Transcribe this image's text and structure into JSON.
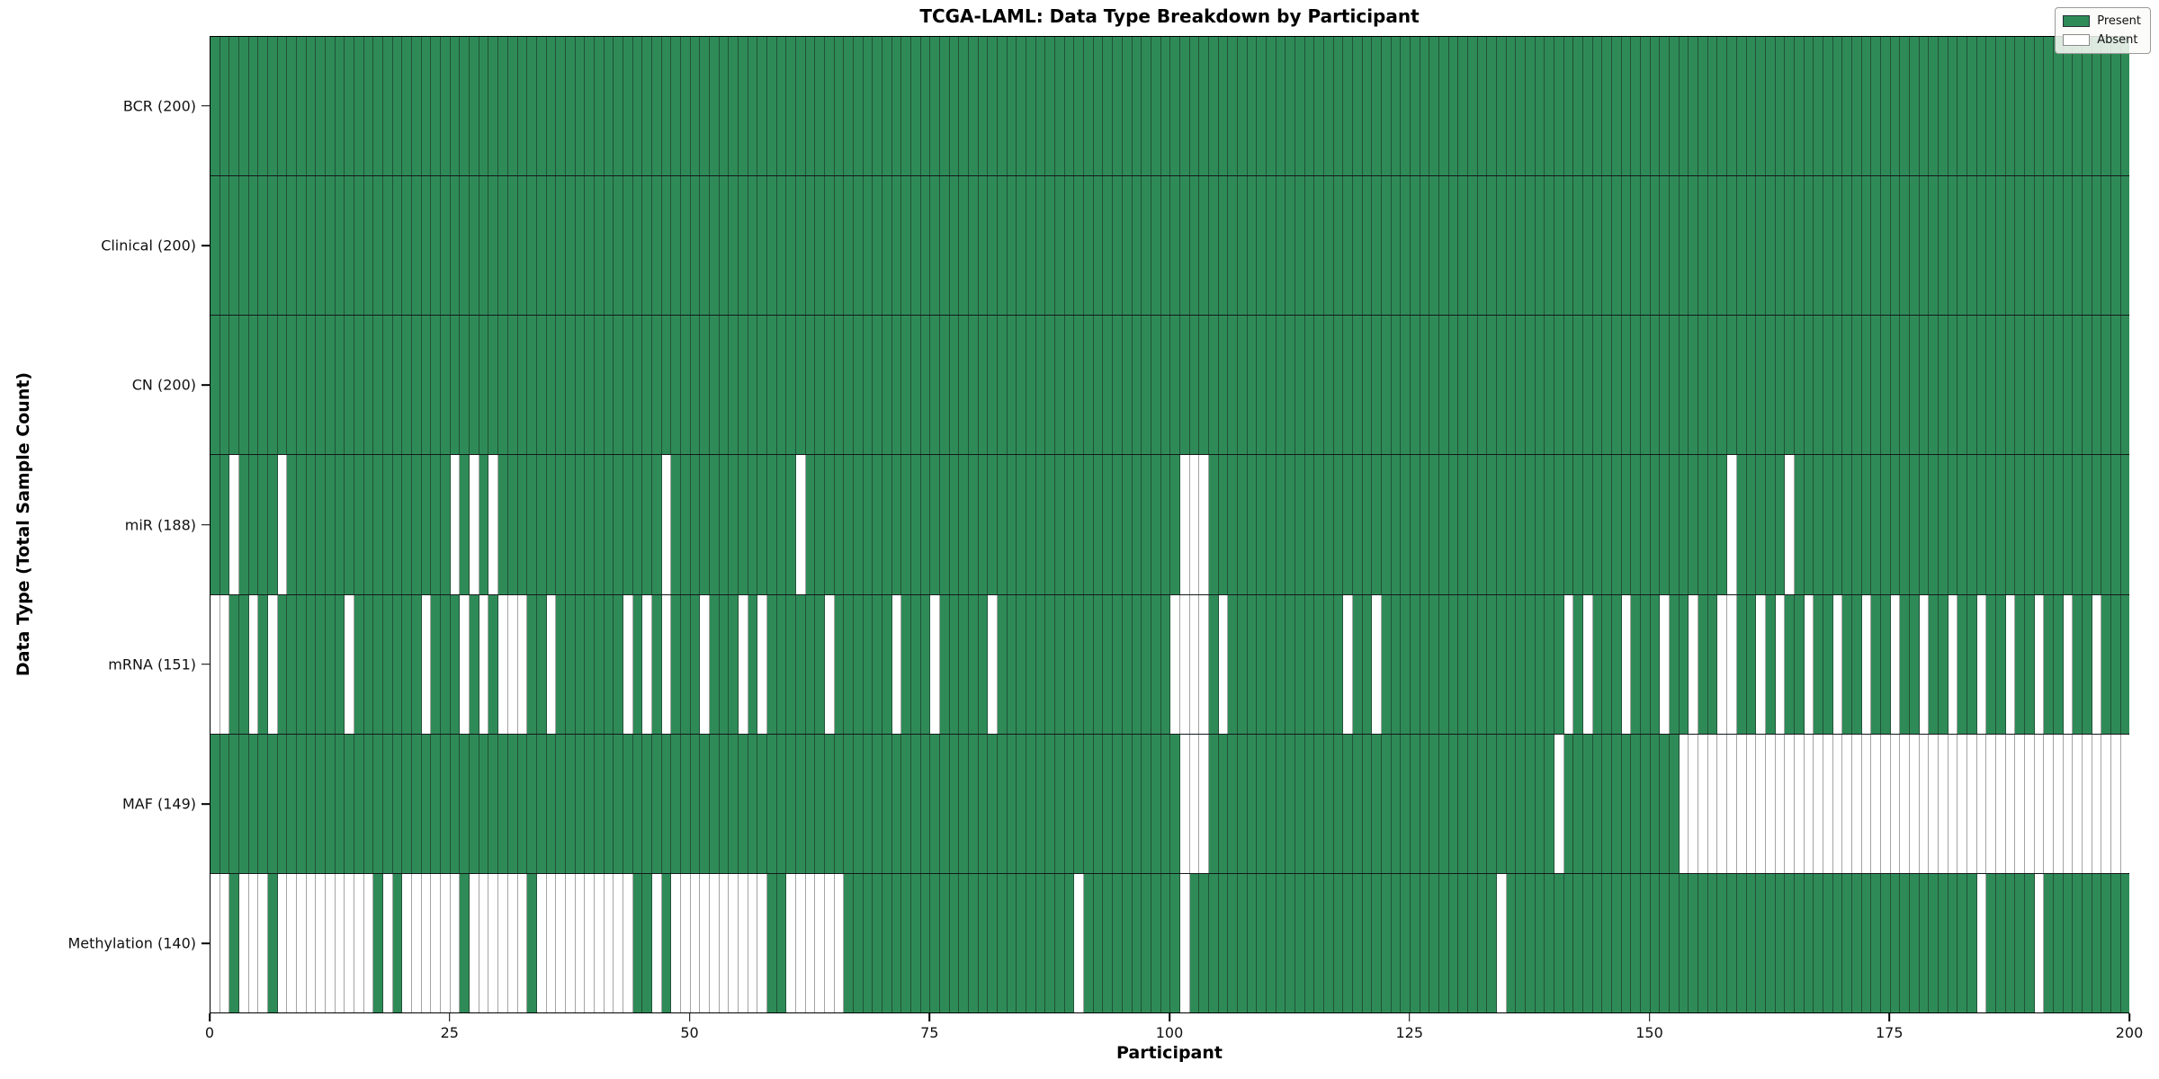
{
  "title": "TCGA-LAML: Data Type Breakdown by Participant",
  "x_axis": {
    "label": "Participant",
    "ticks": [
      0,
      25,
      50,
      75,
      100,
      125,
      150,
      175,
      200
    ],
    "range": [
      0,
      200
    ]
  },
  "y_axis": {
    "label": "Data Type (Total Sample Count)"
  },
  "legend": {
    "position": "upper right",
    "items": [
      {
        "label": "Present",
        "color": "#2e8b57"
      },
      {
        "label": "Absent",
        "color": "#ffffff"
      }
    ]
  },
  "colors": {
    "present": "#2e8b57",
    "absent": "#ffffff",
    "cell_edge": "#26332c",
    "axis": "#000000"
  },
  "chart_data": {
    "type": "heatmap",
    "n_participants": 200,
    "value_encoding": {
      "present": 1,
      "absent": 0
    },
    "rows": [
      {
        "label": "BCR (200)",
        "data_type": "BCR",
        "present_count": 200,
        "absent_participants": []
      },
      {
        "label": "Clinical (200)",
        "data_type": "Clinical",
        "present_count": 200,
        "absent_participants": []
      },
      {
        "label": "CN (200)",
        "data_type": "CN",
        "present_count": 200,
        "absent_participants": []
      },
      {
        "label": "miR (188)",
        "data_type": "miR",
        "present_count": 188,
        "absent_participants": [
          2,
          7,
          25,
          27,
          29,
          47,
          61,
          101,
          102,
          103,
          158,
          164
        ]
      },
      {
        "label": "mRNA (151)",
        "data_type": "mRNA",
        "present_count": 151,
        "absent_participants": [
          0,
          1,
          4,
          6,
          14,
          22,
          26,
          28,
          30,
          31,
          32,
          35,
          43,
          45,
          47,
          51,
          55,
          57,
          64,
          71,
          75,
          81,
          100,
          101,
          102,
          103,
          105,
          118,
          121,
          141,
          143,
          147,
          151,
          154,
          157,
          158,
          161,
          163,
          166,
          169,
          172,
          175,
          178,
          181,
          184,
          187,
          190,
          193,
          196
        ]
      },
      {
        "label": "MAF (149)",
        "data_type": "MAF",
        "present_count": 149,
        "absent_participants": [
          101,
          102,
          103,
          140,
          153,
          154,
          155,
          156,
          157,
          158,
          159,
          160,
          161,
          162,
          163,
          164,
          165,
          166,
          167,
          168,
          169,
          170,
          171,
          172,
          173,
          174,
          175,
          176,
          177,
          178,
          179,
          180,
          181,
          182,
          183,
          184,
          185,
          186,
          187,
          188,
          189,
          190,
          191,
          192,
          193,
          194,
          195,
          196,
          197,
          198,
          199
        ]
      },
      {
        "label": "Methylation (140)",
        "data_type": "Methylation",
        "present_count": 140,
        "absent_participants": [
          0,
          1,
          3,
          4,
          5,
          7,
          8,
          9,
          10,
          11,
          12,
          13,
          14,
          15,
          16,
          18,
          20,
          21,
          22,
          23,
          24,
          25,
          27,
          28,
          29,
          30,
          31,
          32,
          34,
          35,
          36,
          37,
          38,
          39,
          40,
          41,
          42,
          43,
          46,
          48,
          49,
          50,
          51,
          52,
          53,
          54,
          55,
          56,
          57,
          60,
          61,
          62,
          63,
          64,
          65,
          90,
          101,
          134,
          184,
          190
        ]
      }
    ]
  }
}
